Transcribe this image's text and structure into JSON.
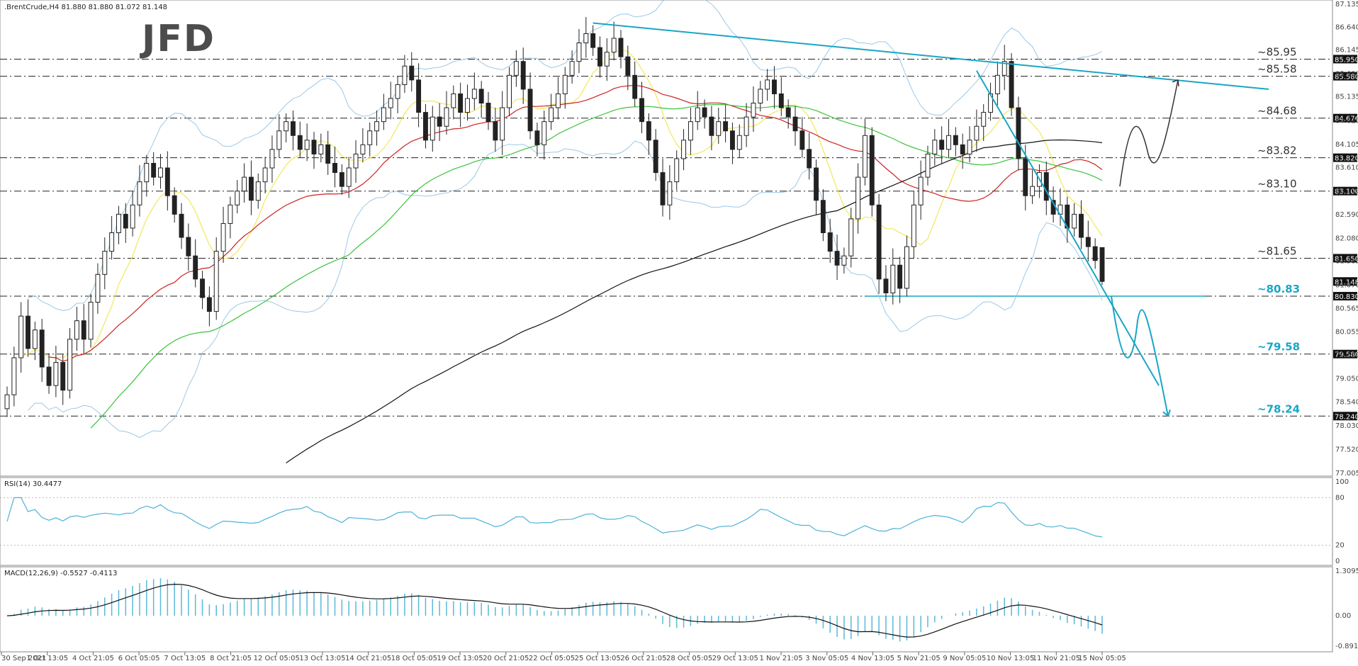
{
  "header": {
    "symbol_info": ".BrentCrude,H4  81.880 81.880 81.072 81.148",
    "logo": "JFD"
  },
  "colors": {
    "bull_candle": "#ffffff",
    "bear_candle": "#222222",
    "ma_fast": "#f2e85a",
    "ma_mid": "#cc2222",
    "ma_slow": "#3cc23c",
    "ma_long": "#111111",
    "bollinger": "#9cc8e6",
    "trendline": "#19a6c6",
    "rsi_line": "#4fb2d8",
    "macd_hist": "#5bb8d8",
    "macd_signal": "#111111"
  },
  "chart_data": [
    {
      "type": "candlestick",
      "title": ".BrentCrude,H4",
      "ohlc_current": {
        "open": 81.88,
        "high": 81.88,
        "low": 81.072,
        "close": 81.148
      },
      "ylim": [
        77.005,
        87.135
      ],
      "y_ticks": [
        87.135,
        86.64,
        86.145,
        85.63,
        85.135,
        84.62,
        84.105,
        83.61,
        83.1,
        82.59,
        82.08,
        81.585,
        81.07,
        80.565,
        80.055,
        79.56,
        79.05,
        78.54,
        78.03,
        77.52,
        77.005
      ],
      "x_ticks": [
        "30 Sep 2021",
        "1 Oct 13:05",
        "4 Oct 21:05",
        "6 Oct 05:05",
        "7 Oct 13:05",
        "8 Oct 21:05",
        "12 Oct 05:05",
        "13 Oct 13:05",
        "14 Oct 21:05",
        "18 Oct 05:05",
        "19 Oct 13:05",
        "20 Oct 21:05",
        "22 Oct 05:05",
        "25 Oct 13:05",
        "26 Oct 21:05",
        "28 Oct 05:05",
        "29 Oct 13:05",
        "1 Nov 21:05",
        "3 Nov 05:05",
        "4 Nov 13:05",
        "5 Nov 21:05",
        "9 Nov 05:05",
        "10 Nov 13:05",
        "11 Nov 21:05",
        "15 Nov 05:05"
      ],
      "price_levels": [
        {
          "value": 85.95,
          "label": "~85.95",
          "box": "85.950",
          "highlight": false
        },
        {
          "value": 85.58,
          "label": "~85.58",
          "box": "85.580",
          "highlight": false
        },
        {
          "value": 84.676,
          "label": "~84.68",
          "box": "84.676",
          "highlight": false
        },
        {
          "value": 83.82,
          "label": "~83.82",
          "box": "83.820",
          "highlight": false
        },
        {
          "value": 83.1,
          "label": "~83.10",
          "box": "83.100",
          "highlight": false
        },
        {
          "value": 81.65,
          "label": "~81.65",
          "box": "81.650",
          "highlight": false
        },
        {
          "value": 80.83,
          "label": "~80.83",
          "box": "80.830",
          "highlight": true
        },
        {
          "value": 79.58,
          "label": "~79.58",
          "box": "79.580",
          "highlight": true
        },
        {
          "value": 78.24,
          "label": "~78.24",
          "box": "78.240",
          "highlight": true
        }
      ],
      "current_price_box": "81.148",
      "closes": [
        78.7,
        79.5,
        80.4,
        79.7,
        80.1,
        79.3,
        78.9,
        79.4,
        78.8,
        79.9,
        80.3,
        79.9,
        80.7,
        81.3,
        81.8,
        82.2,
        82.6,
        82.3,
        82.8,
        83.3,
        83.7,
        83.4,
        83.6,
        83.0,
        82.6,
        82.1,
        81.7,
        81.2,
        80.8,
        80.5,
        81.8,
        82.4,
        82.8,
        83.1,
        83.4,
        82.9,
        83.3,
        83.6,
        84.0,
        84.4,
        84.6,
        84.3,
        84.0,
        84.2,
        83.9,
        84.1,
        83.7,
        83.5,
        83.2,
        83.6,
        83.9,
        84.1,
        84.4,
        84.6,
        84.9,
        85.1,
        85.4,
        85.8,
        85.5,
        84.8,
        84.2,
        84.7,
        84.5,
        84.9,
        85.2,
        84.8,
        85.1,
        85.3,
        85.0,
        84.6,
        84.2,
        84.9,
        85.6,
        85.9,
        85.3,
        84.4,
        84.1,
        84.6,
        84.9,
        85.2,
        85.6,
        85.9,
        86.3,
        86.5,
        86.2,
        85.8,
        86.1,
        86.4,
        86.0,
        85.6,
        85.1,
        84.6,
        84.2,
        83.5,
        82.8,
        83.3,
        83.8,
        84.2,
        84.6,
        84.9,
        84.7,
        84.3,
        84.6,
        84.4,
        84.0,
        84.3,
        84.7,
        85.0,
        85.3,
        85.5,
        85.2,
        84.9,
        84.7,
        84.4,
        84.0,
        83.6,
        82.9,
        82.2,
        81.8,
        81.5,
        81.7,
        82.5,
        83.4,
        84.3,
        82.8,
        81.2,
        80.9,
        81.5,
        81.0,
        81.9,
        82.8,
        83.4,
        83.9,
        84.2,
        84.0,
        84.3,
        84.1,
        83.9,
        84.2,
        84.5,
        84.8,
        85.2,
        85.6,
        85.9,
        84.9,
        83.8,
        83.0,
        83.2,
        83.5,
        82.9,
        82.6,
        82.8,
        82.3,
        82.6,
        82.1,
        81.9,
        81.6,
        81.148
      ],
      "annotations": [
        "descending trendline from 25 Oct high",
        "descending short-term trendline from 10 Nov high",
        "horizontal support ~80.83",
        "projected path down to ~79.58 and ~78.24",
        "alternative path up to ~85.58"
      ]
    },
    {
      "type": "line",
      "title": "RSI(14) 30.4477",
      "ylim": [
        0,
        100
      ],
      "y_ticks": [
        100,
        80,
        20,
        0
      ],
      "last_value": 30.4477
    },
    {
      "type": "bar",
      "title": "MACD(12,26,9) -0.5527 -0.4113",
      "ylim": [
        -0.8917,
        1.3095
      ],
      "y_ticks": [
        "1.3095",
        "0.00",
        "-0.8917"
      ],
      "macd": -0.5527,
      "signal": -0.4113
    }
  ]
}
